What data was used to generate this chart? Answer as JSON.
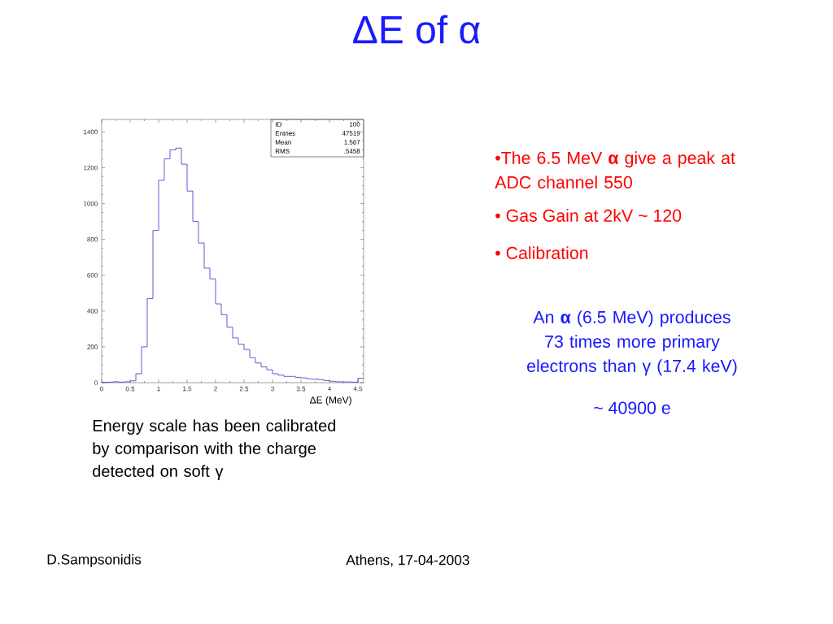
{
  "chart_data": {
    "type": "histogram",
    "title": "ΔE of α",
    "xlabel": "ΔE (MeV)",
    "bins": [
      0,
      0.1,
      0.2,
      0.3,
      0.4,
      0.5,
      0.6,
      0.7,
      0.8,
      0.9,
      1.0,
      1.1,
      1.2,
      1.3,
      1.4,
      1.5,
      1.6,
      1.7,
      1.8,
      1.9,
      2.0,
      2.1,
      2.2,
      2.3,
      2.4,
      2.5,
      2.6,
      2.7,
      2.8,
      2.9,
      3.0,
      3.1,
      3.2,
      3.3,
      3.4,
      3.5,
      3.6,
      3.7,
      3.8,
      3.9,
      4.0,
      4.1,
      4.2,
      4.3,
      4.4,
      4.5,
      4.6
    ],
    "values": [
      2,
      3,
      5,
      3,
      5,
      10,
      50,
      200,
      470,
      850,
      1130,
      1250,
      1300,
      1310,
      1220,
      1070,
      900,
      780,
      640,
      580,
      440,
      380,
      310,
      250,
      215,
      185,
      140,
      110,
      88,
      72,
      50,
      42,
      35,
      35,
      30,
      27,
      22,
      20,
      17,
      12,
      8,
      5,
      4,
      4,
      3,
      25
    ],
    "color": "#3333cc",
    "xlim": [
      0,
      4.6
    ],
    "ylim": [
      0,
      1470
    ],
    "xticks": [
      0,
      0.5,
      1,
      1.5,
      2,
      2.5,
      3,
      3.5,
      4,
      4.5
    ],
    "yticks": [
      0,
      200,
      400,
      600,
      800,
      1000,
      1200,
      1400
    ],
    "annotations": [
      "ID",
      "100",
      "Entries",
      "47519",
      "Mean",
      "1.567",
      "RMS",
      ".5458",
      "•The 6.5 MeV **α** give a peak at ADC channel 550",
      "• Gas Gain at 2kV ~ 120",
      "• Calibration",
      "An **α** (6.5 MeV) produces 73 times more primary electrons than γ (17.4 keV)",
      "~ 40900 e",
      "Energy scale has been calibrated by comparison with the charge detected on soft γ",
      "D.Sampsonidis",
      "Athens, 17-04-2003"
    ]
  }
}
